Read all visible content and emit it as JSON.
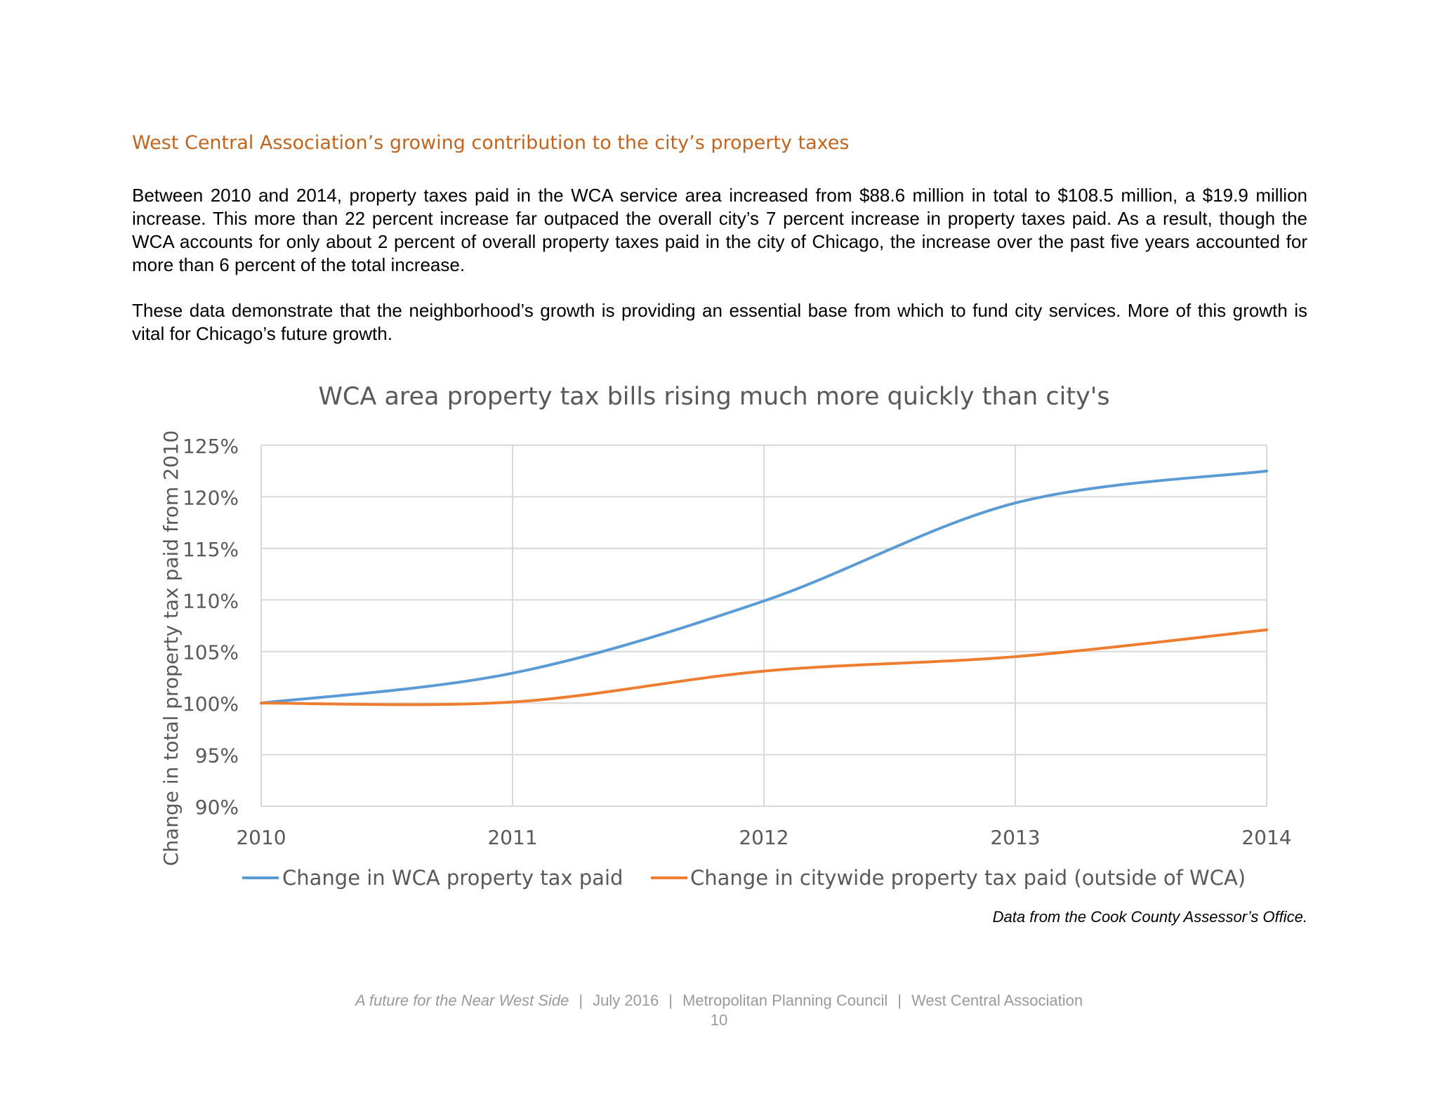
{
  "section": {
    "heading": "West Central Association’s growing contribution to the city’s property taxes"
  },
  "paragraphs": [
    "Between 2010 and 2014, property taxes paid in the WCA service area increased from $88.6 million in total to $108.5 million, a $19.9 million increase. This more than 22 percent increase far outpaced the overall city’s 7 percent increase in property taxes paid. As a result, though the WCA accounts for only about 2 percent of overall property taxes paid in the city of Chicago, the increase over the past five years accounted for more than 6 percent of the total increase.",
    "These data demonstrate that the neighborhood’s growth is providing an essential base from which to fund city services. More of this growth is vital for Chicago’s future growth."
  ],
  "chart_data": {
    "type": "line",
    "title": "WCA area property tax bills rising much more quickly than city's",
    "xlabel": "",
    "ylabel": "Change in total property tax paid from 2010",
    "categories": [
      "2010",
      "2011",
      "2012",
      "2013",
      "2014"
    ],
    "x": [
      2010,
      2011,
      2012,
      2013,
      2014
    ],
    "y_ticks": [
      "90%",
      "95%",
      "100%",
      "105%",
      "110%",
      "115%",
      "120%",
      "125%"
    ],
    "ylim": [
      90,
      125
    ],
    "grid": true,
    "smooth": true,
    "legend_position": "bottom",
    "series": [
      {
        "name": "Change in WCA property tax paid",
        "color": "#5b9bd5",
        "values": [
          100,
          102.9,
          109.9,
          119.4,
          122.5
        ]
      },
      {
        "name": "Change in citywide property tax paid (outside of WCA)",
        "color": "#ed7d31",
        "values": [
          100,
          100.1,
          103.1,
          104.5,
          107.1
        ]
      }
    ]
  },
  "source_note": "Data from the Cook County Assessor’s Office.",
  "footer": {
    "publication": "A future for the Near West Side",
    "date": "July 2016",
    "org1": "Metropolitan Planning Council",
    "org2": "West Central Association",
    "separator": "|",
    "page_number": "10"
  }
}
